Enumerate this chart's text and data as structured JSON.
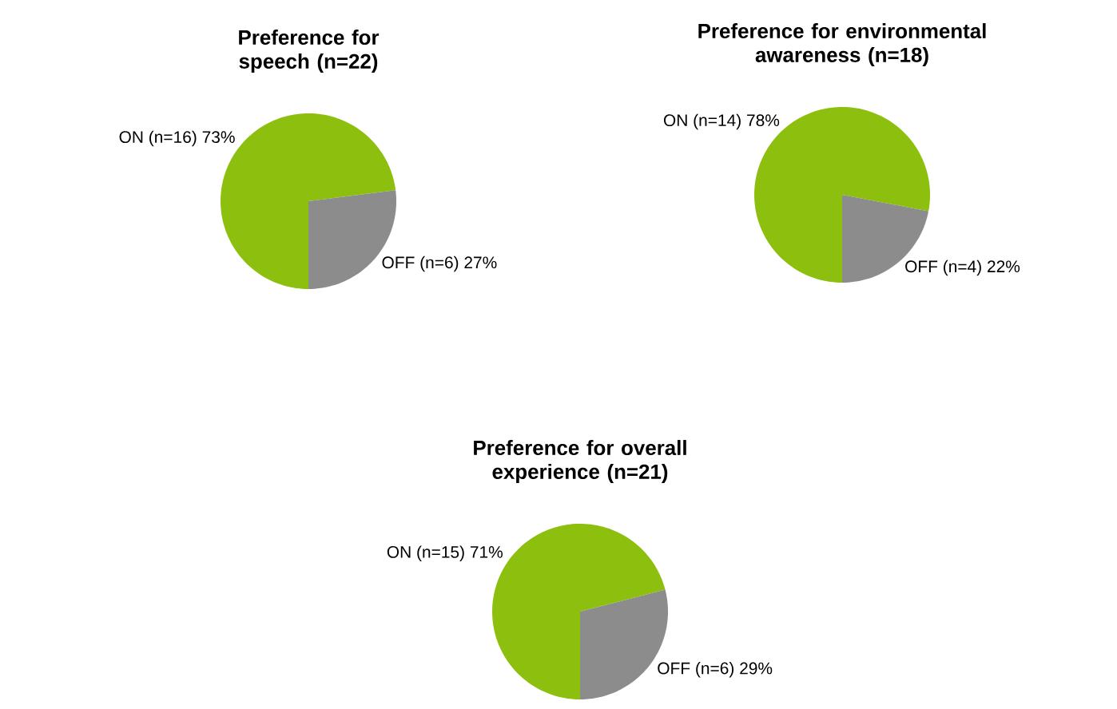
{
  "chart_data": [
    {
      "type": "pie",
      "title": "Preference for speech (n=22)",
      "categories": [
        "ON (n=16)",
        "OFF (n=6)"
      ],
      "values": [
        73,
        27
      ],
      "value_labels": [
        "73%",
        "27%"
      ],
      "colors": [
        "#8cbf0e",
        "#8c8c8c"
      ]
    },
    {
      "type": "pie",
      "title": "Preference for environmental awareness (n=18)",
      "categories": [
        "ON (n=14)",
        "OFF (n=4)"
      ],
      "values": [
        78,
        22
      ],
      "value_labels": [
        "78%",
        "22%"
      ],
      "colors": [
        "#8cbf0e",
        "#8c8c8c"
      ]
    },
    {
      "type": "pie",
      "title": "Preference for overall experience (n=21)",
      "categories": [
        "ON (n=15)",
        "OFF (n=6)"
      ],
      "values": [
        71,
        29
      ],
      "value_labels": [
        "71%",
        "29%"
      ],
      "colors": [
        "#8cbf0e",
        "#8c8c8c"
      ]
    }
  ]
}
